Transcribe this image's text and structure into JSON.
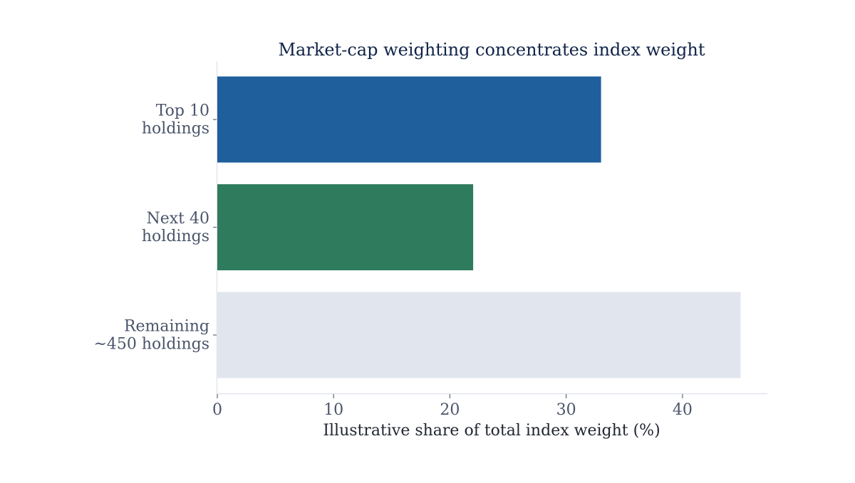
{
  "chart_data": {
    "type": "bar",
    "orientation": "horizontal",
    "title": "Market-cap weighting concentrates index weight",
    "xlabel": "Illustrative share of total index weight (%)",
    "ylabel": "",
    "categories": [
      {
        "lines": [
          "Top 10",
          "holdings"
        ]
      },
      {
        "lines": [
          "Next 40",
          "holdings"
        ]
      },
      {
        "lines": [
          "Remaining",
          "~450 holdings"
        ]
      }
    ],
    "values": [
      33,
      22,
      45
    ],
    "colors": [
      "#1f5f9c",
      "#2f7b5e",
      "#e1e6ee"
    ],
    "xlim": [
      0,
      47.3
    ],
    "xticks": [
      0,
      10,
      20,
      30,
      40
    ],
    "grid": false,
    "legend": "none"
  }
}
